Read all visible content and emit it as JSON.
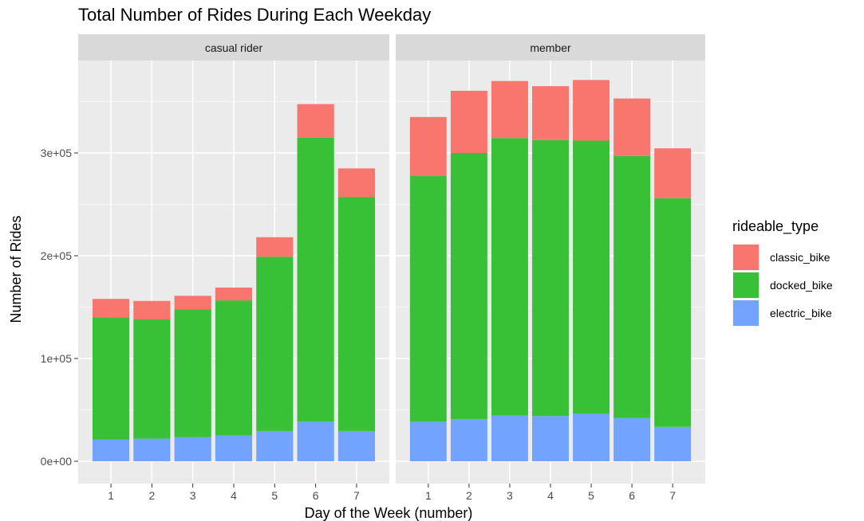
{
  "chart_data": {
    "type": "bar",
    "title": "Total Number of Rides During Each Weekday",
    "xlabel": "Day of the Week (number)",
    "ylabel": "Number of Rides",
    "ylim": [
      0,
      385000
    ],
    "yticks": [
      {
        "value": 0,
        "label": "0e+00"
      },
      {
        "value": 100000,
        "label": "1e+05"
      },
      {
        "value": 200000,
        "label": "2e+05"
      },
      {
        "value": 300000,
        "label": "3e+05"
      }
    ],
    "categories": [
      "1",
      "2",
      "3",
      "4",
      "5",
      "6",
      "7"
    ],
    "legend": {
      "title": "rideable_type",
      "position": "right",
      "items": [
        {
          "name": "classic_bike",
          "color": "#F8766D"
        },
        {
          "name": "docked_bike",
          "color": "#38C136"
        },
        {
          "name": "electric_bike",
          "color": "#72A3FF"
        }
      ]
    },
    "stack_order_bottom_to_top": [
      "electric_bike",
      "docked_bike",
      "classic_bike"
    ],
    "panels": [
      {
        "strip": "casual rider",
        "series": [
          {
            "name": "electric_bike",
            "values": [
              21000,
              22000,
              23500,
              25000,
              29500,
              38500,
              29500
            ]
          },
          {
            "name": "docked_bike",
            "values": [
              119000,
              116000,
              124500,
              131500,
              169500,
              276500,
              227500
            ]
          },
          {
            "name": "classic_bike",
            "values": [
              18000,
              18000,
              13000,
              12500,
              19000,
              32500,
              28000
            ]
          }
        ]
      },
      {
        "strip": "member",
        "series": [
          {
            "name": "electric_bike",
            "values": [
              38500,
              41000,
              44500,
              44000,
              46500,
              42000,
              33500
            ]
          },
          {
            "name": "docked_bike",
            "values": [
              239000,
              259000,
              270000,
              268500,
              265500,
              255000,
              222500
            ]
          },
          {
            "name": "classic_bike",
            "values": [
              57500,
              60500,
              55500,
              52500,
              59000,
              56000,
              48500
            ]
          }
        ]
      }
    ],
    "grid": true
  }
}
